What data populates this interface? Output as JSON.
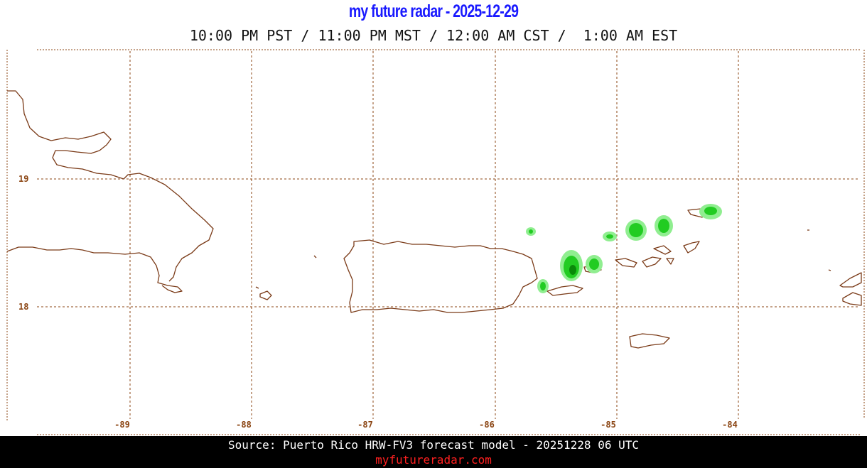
{
  "header": {
    "title": "my future radar - 2025-12-29",
    "title_color": "#1a1aff",
    "time_line": "10:00 PM PST / 11:00 PM MST / 12:00 AM CST /  1:00 AM EST"
  },
  "map": {
    "grid_color": "#8b4513",
    "coast_color": "#7a3a17",
    "lon_labels": [
      "-89",
      "-88",
      "-87",
      "-86",
      "-85",
      "-84"
    ],
    "lat_labels": [
      "19",
      "18"
    ],
    "precip_colors": {
      "light": "#90ee90",
      "medium": "#22cc22",
      "heavy": "#0a8a0a"
    }
  },
  "footer": {
    "source": "Source: Puerto Rico HRW-FV3 forecast model - 20251228 06 UTC",
    "site": "myfutureradar.com",
    "site_color": "#ff2020"
  }
}
